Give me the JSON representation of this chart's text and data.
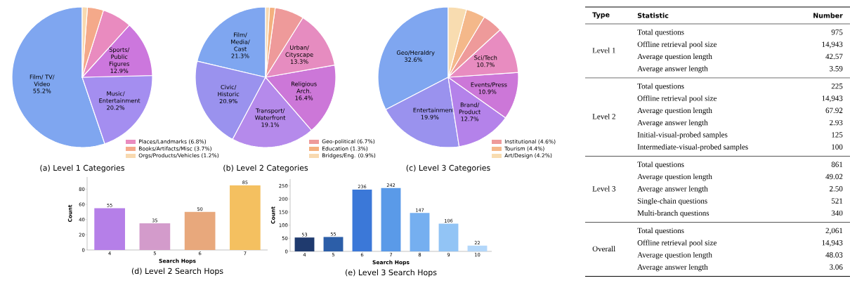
{
  "chart_data": [
    {
      "type": "pie",
      "title": "(a) Level 1 Categories",
      "categories": [
        "Film/ TV/ Video",
        "Music/ Entertainment",
        "Sports/ Public Figures",
        "Places/Landmarks (6.8%)",
        "Books/Artifacts/Misc (3.7%)",
        "Orgs/Products/Vehicles (1.2%)"
      ],
      "values": [
        55.2,
        20.2,
        12.9,
        6.8,
        3.7,
        1.2
      ],
      "value_labels": [
        "55.2%",
        "20.2%",
        "12.9%",
        null,
        null,
        null
      ],
      "colors": [
        "#7fa6f0",
        "#a48ef0",
        "#cc77dd",
        "#e98bbf",
        "#f4a98a",
        "#f8d9b0"
      ],
      "data_labels": true,
      "legend": "bottom right"
    },
    {
      "type": "pie",
      "title": "(b) Level 2 Categories",
      "categories": [
        "Film/ Media/ Cast",
        "Civic/ Historic",
        "Transport/ Waterfront",
        "Religious Arch.",
        "Urban/ Cityscape",
        "Geo-political (6.7%)",
        "Education (1.3%)",
        "Bridges/Eng. (0.9%)"
      ],
      "values": [
        21.3,
        20.9,
        19.1,
        16.4,
        13.3,
        6.7,
        1.3,
        0.9
      ],
      "value_labels": [
        "21.3%",
        "20.9%",
        "19.1%",
        "16.4%",
        "13.3%",
        null,
        null,
        null
      ],
      "colors": [
        "#7fa6f0",
        "#9a92ee",
        "#b58aeb",
        "#cc77d8",
        "#e68cc0",
        "#ee9a9a",
        "#f4b07e",
        "#f8d9b0"
      ],
      "data_labels": true,
      "legend": "bottom right"
    },
    {
      "type": "pie",
      "title": "(c) Level 3 Categories",
      "categories": [
        "Geo/Heraldry",
        "Entertainment",
        "Brand/ Product",
        "Events/Press",
        "Sci/Tech",
        "Institutional (4.6%)",
        "Tourism (4.4%)",
        "Art/Design (4.2%)"
      ],
      "values": [
        32.6,
        19.9,
        12.7,
        10.9,
        10.7,
        4.6,
        4.4,
        4.2
      ],
      "value_labels": [
        "32.6%",
        "19.9%",
        "12.7%",
        "10.9%",
        "10.7%",
        null,
        null,
        null
      ],
      "colors": [
        "#7fa6f0",
        "#9a92ee",
        "#b482ea",
        "#cc77d8",
        "#e88cc0",
        "#ee9a9a",
        "#f4b88a",
        "#f8dcb0"
      ],
      "data_labels": true,
      "legend": "bottom right"
    },
    {
      "type": "other",
      "title": "Level 1",
      "annotations": [
        "Type",
        "Statistic",
        "Number"
      ],
      "categories": [
        "Total questions",
        "Offline retrieval pool size",
        "Average question length",
        "Average answer length"
      ],
      "values": [
        975,
        14943,
        42.57,
        3.59
      ],
      "value_labels": [
        "975",
        "14,943",
        "42.57",
        "3.59"
      ]
    },
    {
      "type": "other",
      "title": "Level 2",
      "categories": [
        "Total questions",
        "Offline retrieval pool size",
        "Average question length",
        "Average answer length",
        "Initial-visual-probed samples",
        "Intermediate-visual-probed samples"
      ],
      "values": [
        225,
        14943,
        67.92,
        2.93,
        125,
        100
      ],
      "value_labels": [
        "225",
        "14,943",
        "67.92",
        "2.93",
        "125",
        "100"
      ]
    },
    {
      "type": "other",
      "title": "Level 3",
      "categories": [
        "Total questions",
        "Average question length",
        "Average answer length",
        "Single-chain questions",
        "Multi-branch questions"
      ],
      "values": [
        861,
        49.02,
        2.5,
        521,
        340
      ],
      "value_labels": [
        "861",
        "49.02",
        "2.50",
        "521",
        "340"
      ]
    },
    {
      "type": "other",
      "title": "Overall",
      "categories": [
        "Total questions",
        "Offline retrieval pool size",
        "Average question length",
        "Average answer length"
      ],
      "values": [
        2061,
        14943,
        48.03,
        3.06
      ],
      "value_labels": [
        "2,061",
        "14,943",
        "48.03",
        "3.06"
      ]
    },
    {
      "type": "bar",
      "title": "(d) Level 2 Search Hops",
      "xlabel": "Search Hops",
      "ylabel": "Count",
      "categories": [
        "4",
        "5",
        "6",
        "7"
      ],
      "values": [
        55,
        35,
        50,
        85
      ],
      "colors": [
        "#b57fe8",
        "#d39bcb",
        "#e8a87c",
        "#f4c060"
      ],
      "ylim": [
        0,
        96
      ],
      "yticks": [
        0,
        20,
        40,
        60,
        80
      ],
      "data_labels": true
    },
    {
      "type": "bar",
      "title": "(e) Level 3 Search Hops",
      "xlabel": "Search Hops",
      "ylabel": "Count",
      "categories": [
        "4",
        "5",
        "6",
        "7",
        "8",
        "9",
        "10"
      ],
      "values": [
        53,
        55,
        236,
        242,
        147,
        106,
        22
      ],
      "colors": [
        "#1f3a6e",
        "#2c5ea8",
        "#3b78d8",
        "#5a9ae8",
        "#75aff0",
        "#92c4f5",
        "#b3d7fa"
      ],
      "ylim": [
        0,
        276
      ],
      "yticks": [
        0,
        50,
        100,
        150,
        200,
        250
      ],
      "data_labels": true
    }
  ]
}
